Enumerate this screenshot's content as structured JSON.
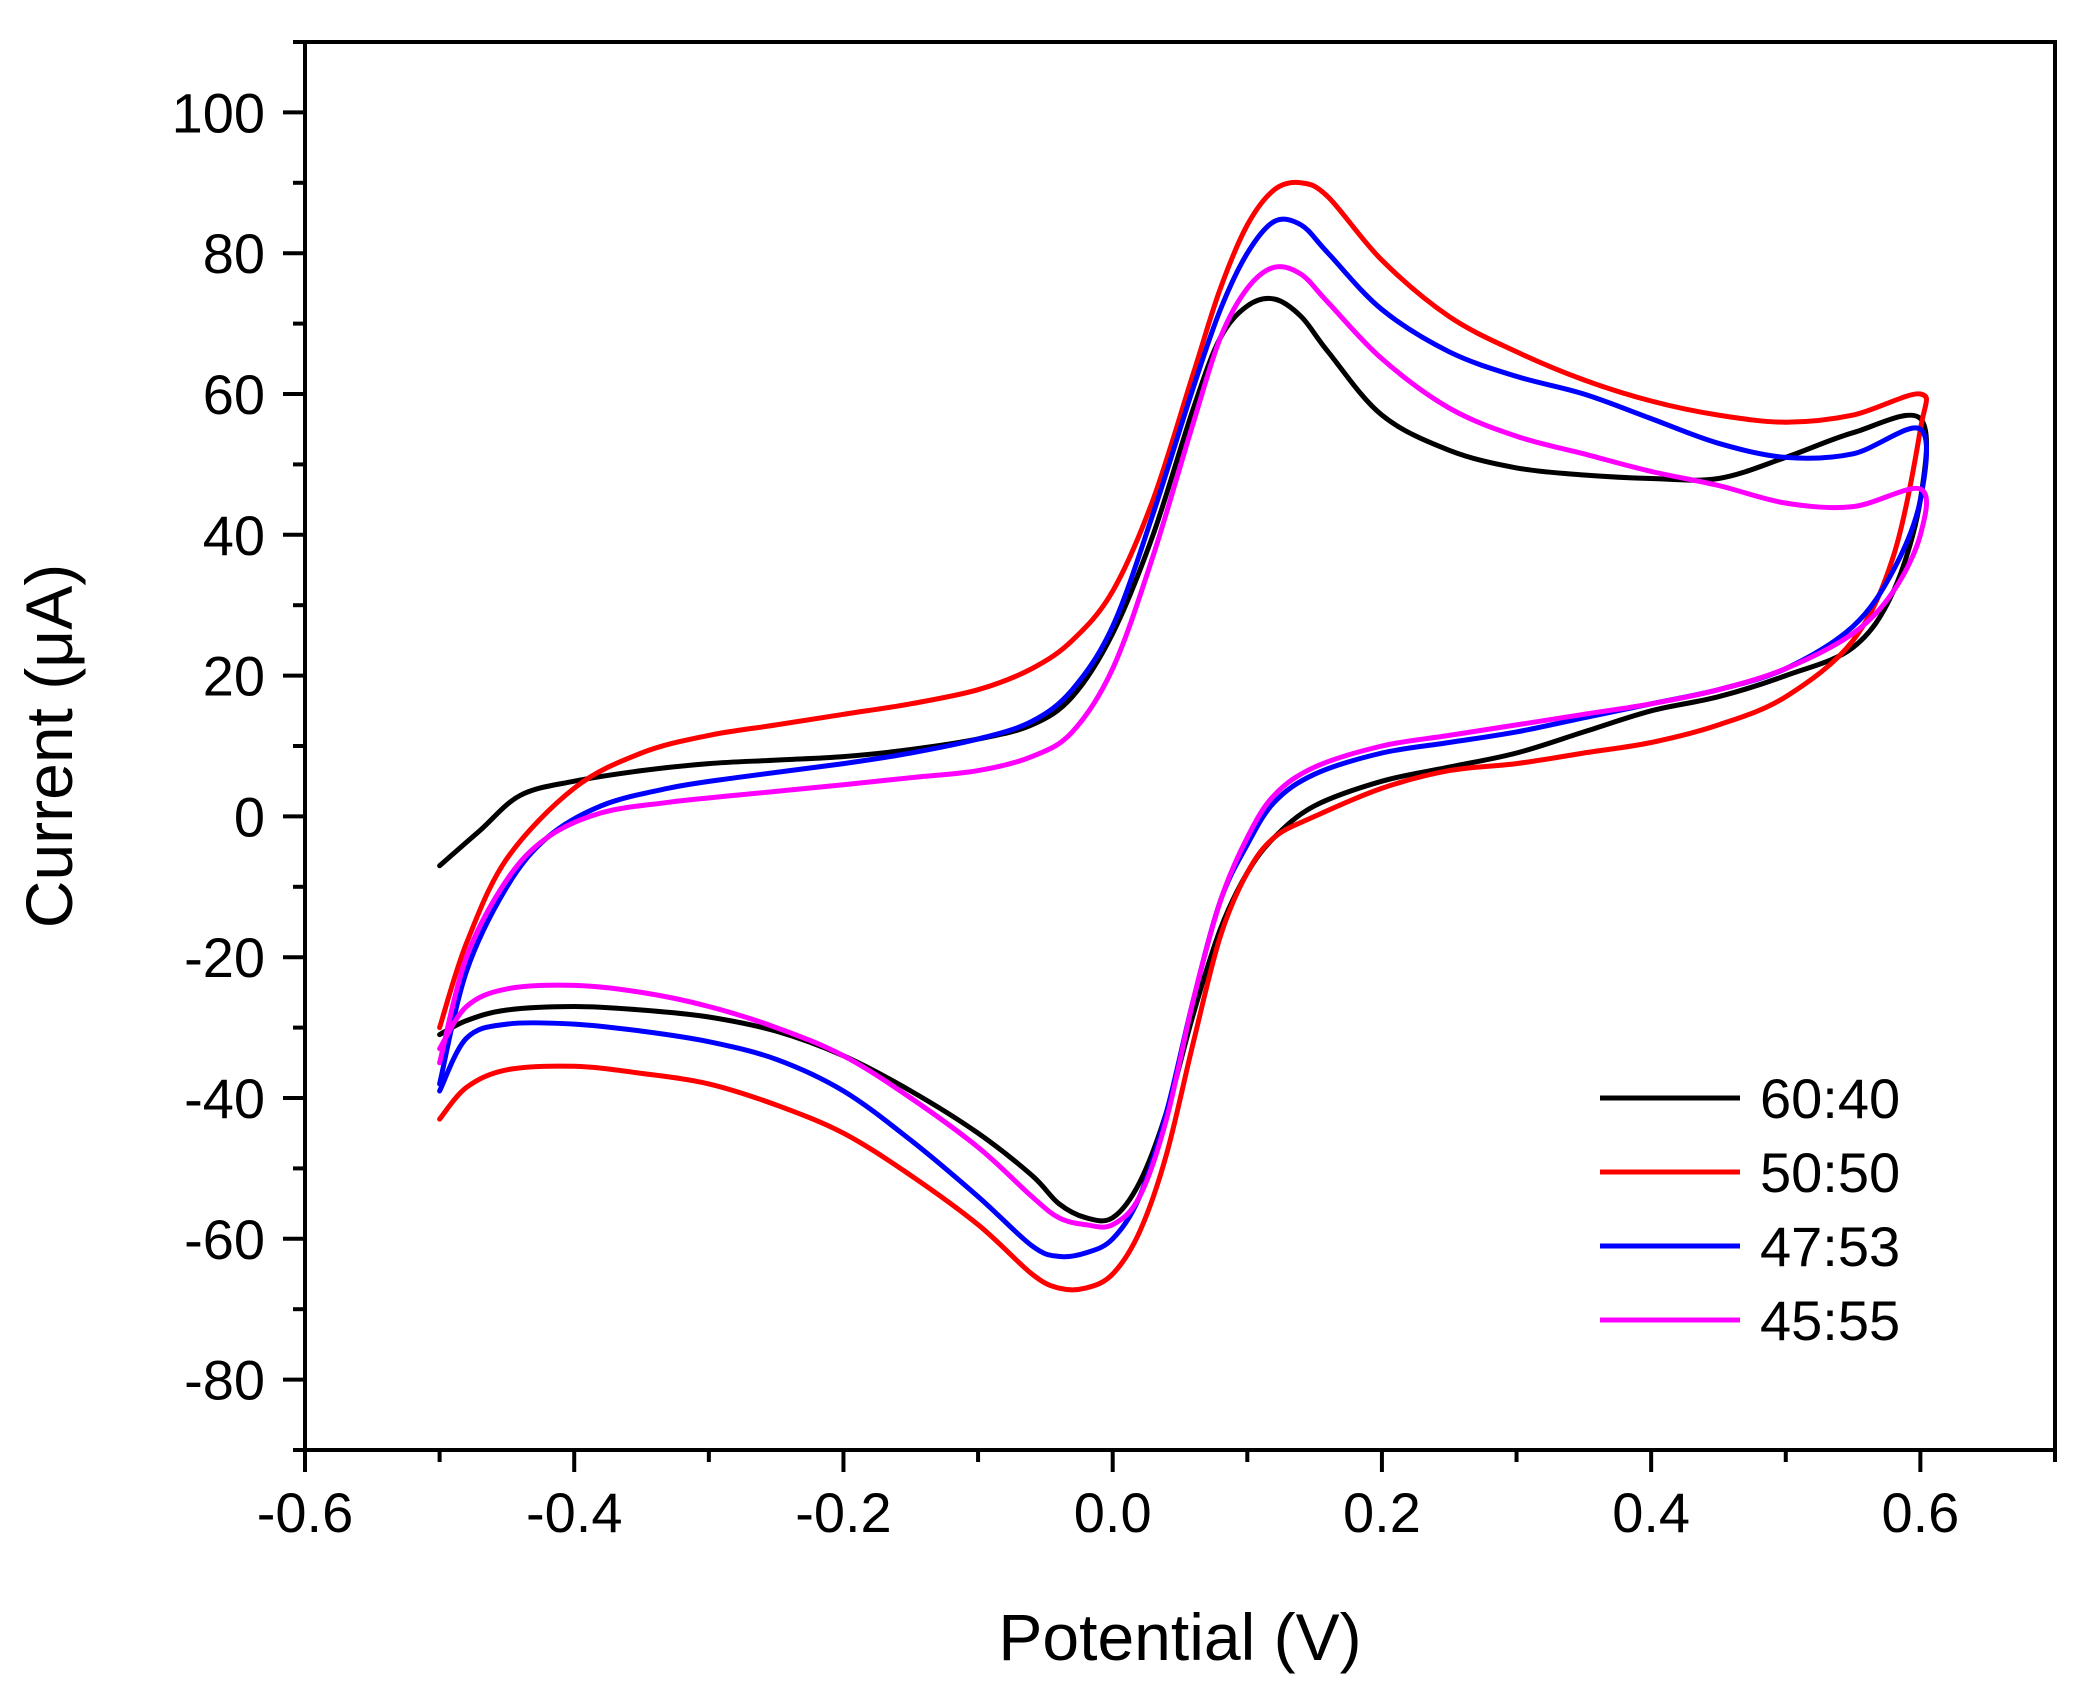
{
  "chart_data": {
    "type": "line",
    "title": "",
    "xlabel": "Potential (V)",
    "ylabel": "Current (μA)",
    "xlim": [
      -0.6,
      0.7
    ],
    "ylim": [
      -90,
      110
    ],
    "xticks": [
      -0.6,
      -0.4,
      -0.2,
      0.0,
      0.2,
      0.4,
      0.6
    ],
    "xtick_labels": [
      "-0.6",
      "-0.4",
      "-0.2",
      "0.0",
      "0.2",
      "0.4",
      "0.6"
    ],
    "yticks": [
      -80,
      -60,
      -40,
      -20,
      0,
      20,
      40,
      60,
      80,
      100
    ],
    "ytick_labels": [
      "-80",
      "-60",
      "-40",
      "-20",
      "0",
      "20",
      "40",
      "60",
      "80",
      "100"
    ],
    "grid": false,
    "legend_position": "bottom-right",
    "series": [
      {
        "name": "60:40",
        "color": "#000000",
        "x": [
          -0.5,
          -0.47,
          -0.44,
          -0.4,
          -0.35,
          -0.3,
          -0.25,
          -0.2,
          -0.15,
          -0.1,
          -0.06,
          -0.03,
          0.0,
          0.03,
          0.06,
          0.08,
          0.1,
          0.12,
          0.14,
          0.16,
          0.2,
          0.25,
          0.3,
          0.35,
          0.4,
          0.45,
          0.5,
          0.55,
          0.6,
          0.6,
          0.58,
          0.55,
          0.5,
          0.45,
          0.4,
          0.35,
          0.3,
          0.25,
          0.2,
          0.15,
          0.12,
          0.1,
          0.08,
          0.06,
          0.04,
          0.02,
          0.0,
          -0.02,
          -0.04,
          -0.06,
          -0.1,
          -0.15,
          -0.2,
          -0.25,
          -0.3,
          -0.35,
          -0.4,
          -0.45,
          -0.48,
          -0.5
        ],
        "y": [
          -7,
          -2,
          3,
          5,
          6.5,
          7.5,
          8,
          8.5,
          9.5,
          11,
          13,
          17,
          26,
          40,
          58,
          68,
          72.5,
          73.5,
          71,
          66,
          57,
          52,
          49.5,
          48.5,
          48,
          48,
          51,
          54.5,
          56.5,
          45,
          32,
          24,
          20,
          17,
          15,
          12,
          9,
          7,
          5,
          1.5,
          -3,
          -8,
          -16,
          -28,
          -42,
          -52,
          -57,
          -57,
          -55,
          -51,
          -45,
          -39,
          -34,
          -30.5,
          -28.5,
          -27.5,
          -27,
          -27.5,
          -29,
          -31
        ]
      },
      {
        "name": "50:50",
        "color": "#ff0000",
        "x": [
          -0.5,
          -0.48,
          -0.45,
          -0.4,
          -0.35,
          -0.3,
          -0.25,
          -0.2,
          -0.15,
          -0.1,
          -0.06,
          -0.03,
          0.0,
          0.03,
          0.06,
          0.08,
          0.1,
          0.12,
          0.14,
          0.16,
          0.2,
          0.25,
          0.3,
          0.35,
          0.4,
          0.45,
          0.5,
          0.55,
          0.6,
          0.6,
          0.58,
          0.55,
          0.5,
          0.45,
          0.4,
          0.35,
          0.3,
          0.25,
          0.2,
          0.15,
          0.12,
          0.1,
          0.08,
          0.06,
          0.04,
          0.02,
          0.0,
          -0.02,
          -0.04,
          -0.06,
          -0.1,
          -0.15,
          -0.2,
          -0.25,
          -0.3,
          -0.35,
          -0.4,
          -0.45,
          -0.48,
          -0.5
        ],
        "y": [
          -30,
          -18,
          -6,
          4,
          9,
          11.5,
          13,
          14.5,
          16,
          18,
          21,
          25,
          32,
          45,
          63,
          75,
          84,
          89,
          90,
          88,
          79,
          71,
          66,
          62,
          59,
          57,
          56,
          57,
          60,
          55,
          37,
          25,
          17,
          13,
          10.5,
          9,
          7.5,
          6.5,
          4,
          0,
          -3,
          -8,
          -17,
          -32,
          -48,
          -59,
          -65,
          -67,
          -67,
          -65,
          -58,
          -51,
          -45,
          -41,
          -38,
          -36.5,
          -35.5,
          -36,
          -38.5,
          -43
        ]
      },
      {
        "name": "47:53",
        "color": "#0000ff",
        "x": [
          -0.5,
          -0.48,
          -0.45,
          -0.42,
          -0.38,
          -0.33,
          -0.28,
          -0.2,
          -0.15,
          -0.1,
          -0.06,
          -0.03,
          0.0,
          0.03,
          0.06,
          0.08,
          0.1,
          0.12,
          0.14,
          0.16,
          0.2,
          0.25,
          0.3,
          0.35,
          0.4,
          0.45,
          0.5,
          0.55,
          0.6,
          0.6,
          0.58,
          0.55,
          0.5,
          0.45,
          0.4,
          0.35,
          0.3,
          0.25,
          0.2,
          0.15,
          0.12,
          0.1,
          0.08,
          0.06,
          0.04,
          0.02,
          0.0,
          -0.02,
          -0.04,
          -0.06,
          -0.1,
          -0.15,
          -0.2,
          -0.25,
          -0.3,
          -0.35,
          -0.4,
          -0.45,
          -0.48,
          -0.5
        ],
        "y": [
          -38,
          -22,
          -10,
          -3,
          1.5,
          4,
          5.5,
          7.5,
          9,
          11,
          13.5,
          18,
          27,
          43,
          61,
          72,
          80,
          84.5,
          84,
          80,
          72,
          66,
          62.5,
          60,
          56.5,
          53,
          51,
          51.5,
          55,
          45,
          35,
          27,
          21,
          18,
          16,
          14,
          12,
          10.5,
          9,
          6,
          2,
          -4,
          -12,
          -26,
          -42,
          -54,
          -60,
          -62,
          -62.5,
          -61,
          -54,
          -46,
          -39,
          -34.5,
          -32,
          -30.5,
          -29.5,
          -29.5,
          -31.5,
          -39
        ]
      },
      {
        "name": "45:55",
        "color": "#ff00ff",
        "x": [
          -0.5,
          -0.48,
          -0.45,
          -0.42,
          -0.38,
          -0.33,
          -0.28,
          -0.2,
          -0.15,
          -0.1,
          -0.06,
          -0.03,
          0.0,
          0.03,
          0.06,
          0.08,
          0.1,
          0.12,
          0.14,
          0.16,
          0.2,
          0.25,
          0.3,
          0.35,
          0.4,
          0.45,
          0.5,
          0.55,
          0.6,
          0.6,
          0.58,
          0.55,
          0.5,
          0.45,
          0.4,
          0.35,
          0.3,
          0.25,
          0.2,
          0.15,
          0.12,
          0.1,
          0.08,
          0.06,
          0.04,
          0.02,
          0.0,
          -0.02,
          -0.04,
          -0.06,
          -0.1,
          -0.15,
          -0.2,
          -0.25,
          -0.3,
          -0.35,
          -0.4,
          -0.45,
          -0.48,
          -0.5
        ],
        "y": [
          -35,
          -20,
          -9,
          -3,
          0.5,
          2,
          3,
          4.5,
          5.5,
          6.5,
          8.5,
          12,
          21,
          37,
          56,
          68,
          75,
          78,
          77,
          73,
          65,
          58,
          54,
          51.5,
          49,
          47,
          44.5,
          44,
          46.5,
          40,
          32,
          26,
          21,
          18,
          16,
          14.5,
          13,
          11.5,
          10,
          7,
          3,
          -3,
          -12,
          -26,
          -43,
          -54,
          -58,
          -58,
          -57,
          -54,
          -47,
          -40,
          -34,
          -30,
          -27,
          -25,
          -24,
          -24.5,
          -27,
          -33
        ]
      }
    ]
  }
}
